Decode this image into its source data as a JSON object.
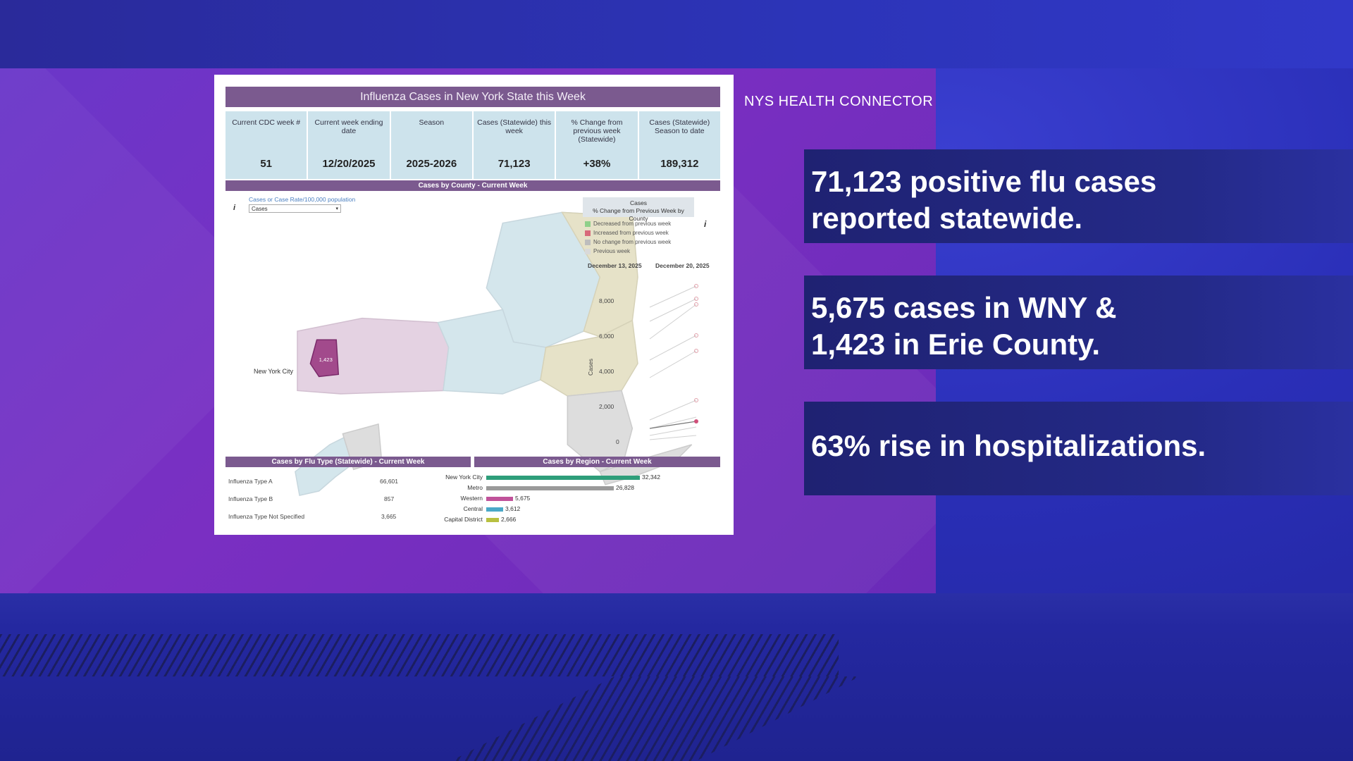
{
  "brand": "NYS HEALTH CONNECTOR",
  "callouts": [
    {
      "line1": "71,123 positive flu cases",
      "line2": "reported statewide."
    },
    {
      "line1": "5,675 cases in WNY &",
      "line2": "1,423 in Erie County."
    },
    {
      "line1": "63% rise in hospitalizations.",
      "line2": ""
    }
  ],
  "dashboard": {
    "title": "Influenza Cases in New York State this Week",
    "kpis": [
      {
        "label": "Current CDC week #",
        "value": "51"
      },
      {
        "label": "Current week ending date",
        "value": "12/20/2025"
      },
      {
        "label": "Season",
        "value": "2025-2026"
      },
      {
        "label": "Cases (Statewide) this week",
        "value": "71,123"
      },
      {
        "label": "% Change from previous week (Statewide)",
        "value": "+38%"
      },
      {
        "label": "Cases (Statewide) Season to date",
        "value": "189,312"
      }
    ],
    "county_section": "Cases by County - Current Week",
    "metric_label": "Cases or Case Rate/100,000 population",
    "metric_select": "Cases",
    "erie_value": "1,423",
    "nyc_label": "New York City",
    "legend_title": "Cases\n% Change from Previous Week by County",
    "legend_items": [
      {
        "label": "Decreased from previous week",
        "color": "#8fd08a"
      },
      {
        "label": "Increased from previous week",
        "color": "#d86a7a"
      },
      {
        "label": "No change from previous week",
        "color": "#bdbdbd"
      },
      {
        "label": "Previous week",
        "color": "#d9d9d9"
      }
    ],
    "slope_dates": [
      "December 13, 2025",
      "December 20, 2025"
    ],
    "slope_ylabel": "Cases",
    "slope_ticks": [
      "8,000",
      "6,000",
      "4,000",
      "2,000",
      "0"
    ],
    "flu_type_section": "Cases by Flu Type (Statewide) - Current Week",
    "flu_types": [
      {
        "label": "Influenza Type A",
        "value": "66,601"
      },
      {
        "label": "Influenza Type B",
        "value": "857"
      },
      {
        "label": "Influenza Type Not Specified",
        "value": "3,665"
      }
    ],
    "region_section": "Cases by Region - Current Week",
    "regions": [
      {
        "label": "New York City",
        "value": "32,342",
        "n": 32342,
        "color": "#2e9e7a"
      },
      {
        "label": "Metro",
        "value": "26,828",
        "n": 26828,
        "color": "#9a9a9a"
      },
      {
        "label": "Western",
        "value": "5,675",
        "n": 5675,
        "color": "#c0529a"
      },
      {
        "label": "Central",
        "value": "3,612",
        "n": 3612,
        "color": "#4aa8c8"
      },
      {
        "label": "Capital District",
        "value": "2,666",
        "n": 2666,
        "color": "#b8c040"
      }
    ]
  }
}
